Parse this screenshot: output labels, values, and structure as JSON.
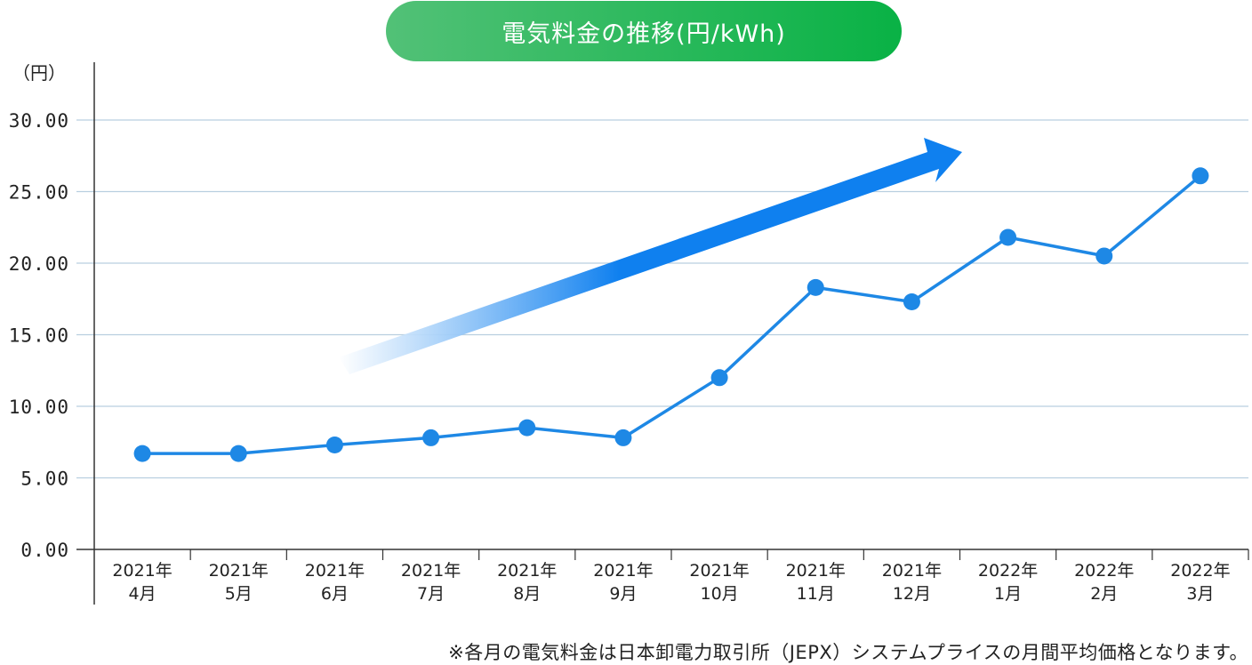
{
  "title": "電気料金の推移(円/kWh)",
  "unit_label": "（円）",
  "footnote": "※各月の電気料金は日本卸電力取引所（JEPX）システムプライスの月間平均価格となります。",
  "colors": {
    "title_start": "#52c177",
    "title_end": "#09b245",
    "line": "#1e88e5",
    "marker": "#1e88e5",
    "arrow": "#0f80ef",
    "grid": "#b9cfe0",
    "axis": "#333333"
  },
  "chart_data": {
    "type": "line",
    "title": "電気料金の推移(円/kWh)",
    "ylabel": "（円）",
    "ylim": [
      0,
      30
    ],
    "yticks": [
      "0.00",
      "5.00",
      "10.00",
      "15.00",
      "20.00",
      "25.00",
      "30.00"
    ],
    "grid": true,
    "categories": [
      [
        "2021年",
        "4月"
      ],
      [
        "2021年",
        "5月"
      ],
      [
        "2021年",
        "6月"
      ],
      [
        "2021年",
        "7月"
      ],
      [
        "2021年",
        "8月"
      ],
      [
        "2021年",
        "9月"
      ],
      [
        "2021年",
        "10月"
      ],
      [
        "2021年",
        "11月"
      ],
      [
        "2021年",
        "12月"
      ],
      [
        "2022年",
        "1月"
      ],
      [
        "2022年",
        "2月"
      ],
      [
        "2022年",
        "3月"
      ]
    ],
    "series": [
      {
        "values": [
          6.7,
          6.7,
          7.3,
          7.8,
          8.5,
          7.8,
          12.0,
          18.3,
          17.3,
          21.8,
          20.5,
          26.1
        ]
      }
    ],
    "annotation": "upward-trend-arrow"
  }
}
